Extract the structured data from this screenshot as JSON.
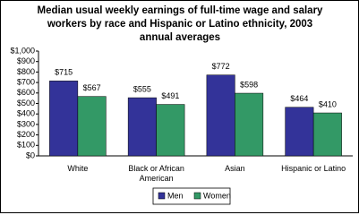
{
  "chart_data": {
    "type": "bar",
    "title": "Median usual weekly earnings of full-time wage and salary workers by race and Hispanic or Latino ethnicity, 2003 annual averages",
    "categories": [
      "White",
      "Black or African American",
      "Asian",
      "Hispanic or Latino"
    ],
    "series": [
      {
        "name": "Men",
        "color": "#333399",
        "values": [
          715,
          555,
          772,
          464
        ],
        "value_labels": [
          "$715",
          "$555",
          "$772",
          "$464"
        ]
      },
      {
        "name": "Women",
        "color": "#339966",
        "values": [
          567,
          491,
          598,
          410
        ],
        "value_labels": [
          "$567",
          "$491",
          "$598",
          "$410"
        ]
      }
    ],
    "ylim": [
      0,
      1000
    ],
    "yticks": [
      {
        "value": 0,
        "label": "$0"
      },
      {
        "value": 100,
        "label": "$100"
      },
      {
        "value": 200,
        "label": "$200"
      },
      {
        "value": 300,
        "label": "$300"
      },
      {
        "value": 400,
        "label": "$400"
      },
      {
        "value": 500,
        "label": "$500"
      },
      {
        "value": 600,
        "label": "$600"
      },
      {
        "value": 700,
        "label": "$700"
      },
      {
        "value": 800,
        "label": "$800"
      },
      {
        "value": 900,
        "label": "$900"
      },
      {
        "value": 1000,
        "label": "$1,000"
      }
    ],
    "grid": false,
    "legend": "bottom"
  }
}
